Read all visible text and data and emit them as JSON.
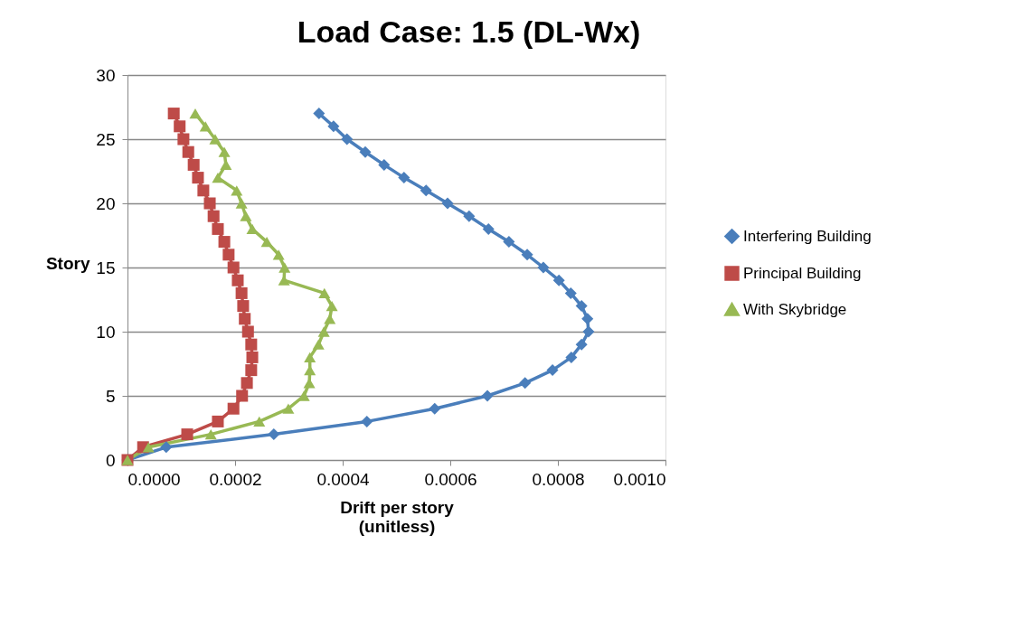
{
  "chart_data": {
    "type": "line",
    "title": "Load Case: 1.5 (DL-Wx)",
    "xlabel": "Drift per story\n(unitless)",
    "ylabel": "Story",
    "xlim": [
      0,
      0.001
    ],
    "xticks": [
      {
        "value": 0,
        "label": "0.0000"
      },
      {
        "value": 0.0002,
        "label": "0.0002"
      },
      {
        "value": 0.0004,
        "label": "0.0004"
      },
      {
        "value": 0.0006,
        "label": "0.0006"
      },
      {
        "value": 0.0008,
        "label": "0.0008"
      },
      {
        "value": 0.001,
        "label": "0.0010"
      }
    ],
    "ylim": [
      0,
      30
    ],
    "yticks": [
      0,
      5,
      10,
      15,
      20,
      25,
      30
    ],
    "grid": "y",
    "legend": "right",
    "series": [
      {
        "name": "Interfering Building",
        "color": "#4a7ebb",
        "marker": "diamond",
        "x": [
          0,
          7.2e-05,
          0.000272,
          0.000445,
          0.000571,
          0.000669,
          0.000739,
          0.00079,
          0.000825,
          0.000844,
          0.000857,
          0.000855,
          0.000844,
          0.000824,
          0.000802,
          0.000773,
          0.000743,
          0.000709,
          0.000671,
          0.000635,
          0.000595,
          0.000555,
          0.000514,
          0.000477,
          0.000442,
          0.000408,
          0.000383,
          0.000356
        ],
        "values": [
          0,
          1,
          2,
          3,
          4,
          5,
          6,
          7,
          8,
          9,
          10,
          11,
          12,
          13,
          14,
          15,
          16,
          17,
          18,
          19,
          20,
          21,
          22,
          23,
          24,
          25,
          26,
          27
        ]
      },
      {
        "name": "Principal Building",
        "color": "#be4b48",
        "marker": "square",
        "x": [
          0,
          2.9e-05,
          0.000111,
          0.000168,
          0.000197,
          0.000213,
          0.000222,
          0.00023,
          0.000232,
          0.00023,
          0.000224,
          0.000218,
          0.000215,
          0.000212,
          0.000205,
          0.000197,
          0.000188,
          0.00018,
          0.000168,
          0.00016,
          0.000153,
          0.000141,
          0.000131,
          0.000123,
          0.000113,
          0.000104,
          9.7e-05,
          8.6e-05
        ],
        "values": [
          0,
          1,
          2,
          3,
          4,
          5,
          6,
          7,
          8,
          9,
          10,
          11,
          12,
          13,
          14,
          15,
          16,
          17,
          18,
          19,
          20,
          21,
          22,
          23,
          24,
          25,
          26,
          27
        ]
      },
      {
        "name": "With Skybridge",
        "color": "#98b954",
        "marker": "triangle",
        "x": [
          0,
          3.9e-05,
          0.000155,
          0.000245,
          0.000299,
          0.000328,
          0.000338,
          0.000339,
          0.000339,
          0.000355,
          0.000365,
          0.000376,
          0.00038,
          0.000366,
          0.000291,
          0.000292,
          0.000281,
          0.000259,
          0.000232,
          0.00022,
          0.000212,
          0.000203,
          0.000168,
          0.000183,
          0.00018,
          0.000163,
          0.000145,
          0.000126
        ],
        "values": [
          0,
          1,
          2,
          3,
          4,
          5,
          6,
          7,
          8,
          9,
          10,
          11,
          12,
          13,
          14,
          15,
          16,
          17,
          18,
          19,
          20,
          21,
          22,
          23,
          24,
          25,
          26,
          27
        ]
      }
    ]
  }
}
